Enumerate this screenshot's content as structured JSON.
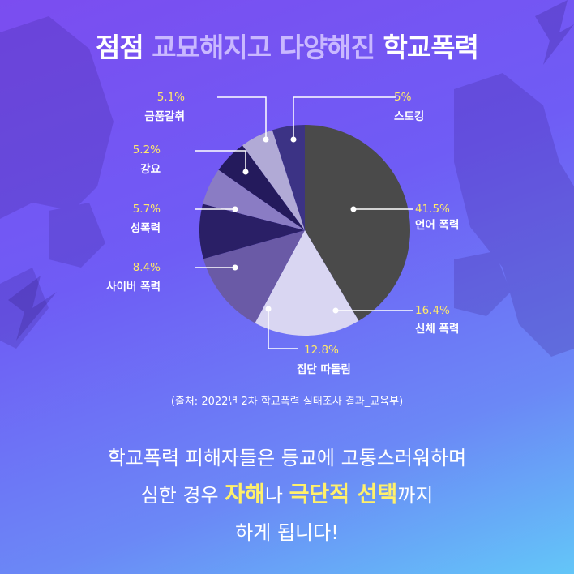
{
  "title": {
    "part1": "점점 ",
    "part2": "교묘해지고",
    "part3": " ",
    "part4": "다양해진",
    "part5": " 학교폭력"
  },
  "chart_data": {
    "type": "pie",
    "categories": [
      "언어 폭력",
      "신체 폭력",
      "집단 따돌림",
      "사이버 폭력",
      "성폭력",
      "강요",
      "금품갈취",
      "스토킹"
    ],
    "values": [
      41.5,
      16.4,
      12.8,
      8.4,
      5.7,
      5.2,
      5.1,
      5.0
    ],
    "labels": [
      "41.5%",
      "16.4%",
      "12.8%",
      "8.4%",
      "5.7%",
      "5.2%",
      "5.1%",
      "5%"
    ],
    "colors": [
      "#4a4a4a",
      "#d9d6f2",
      "#6a5aa6",
      "#2a1f66",
      "#8a7cc4",
      "#241a5c",
      "#b1aad6",
      "#3c3385"
    ],
    "title": "점점 교묘해지고 다양해진 학교폭력"
  },
  "source": "(출처: 2022년 2차 학교폭력 실태조사 결과_교육부)",
  "message": {
    "line1": "학교폭력 피해자들은 등교에 고통스러워하며",
    "line2_a": "심한 경우 ",
    "line2_b": "자해",
    "line2_c": "나 ",
    "line2_d": "극단적 선택",
    "line2_e": "까지",
    "line3": "하게 됩니다!"
  }
}
